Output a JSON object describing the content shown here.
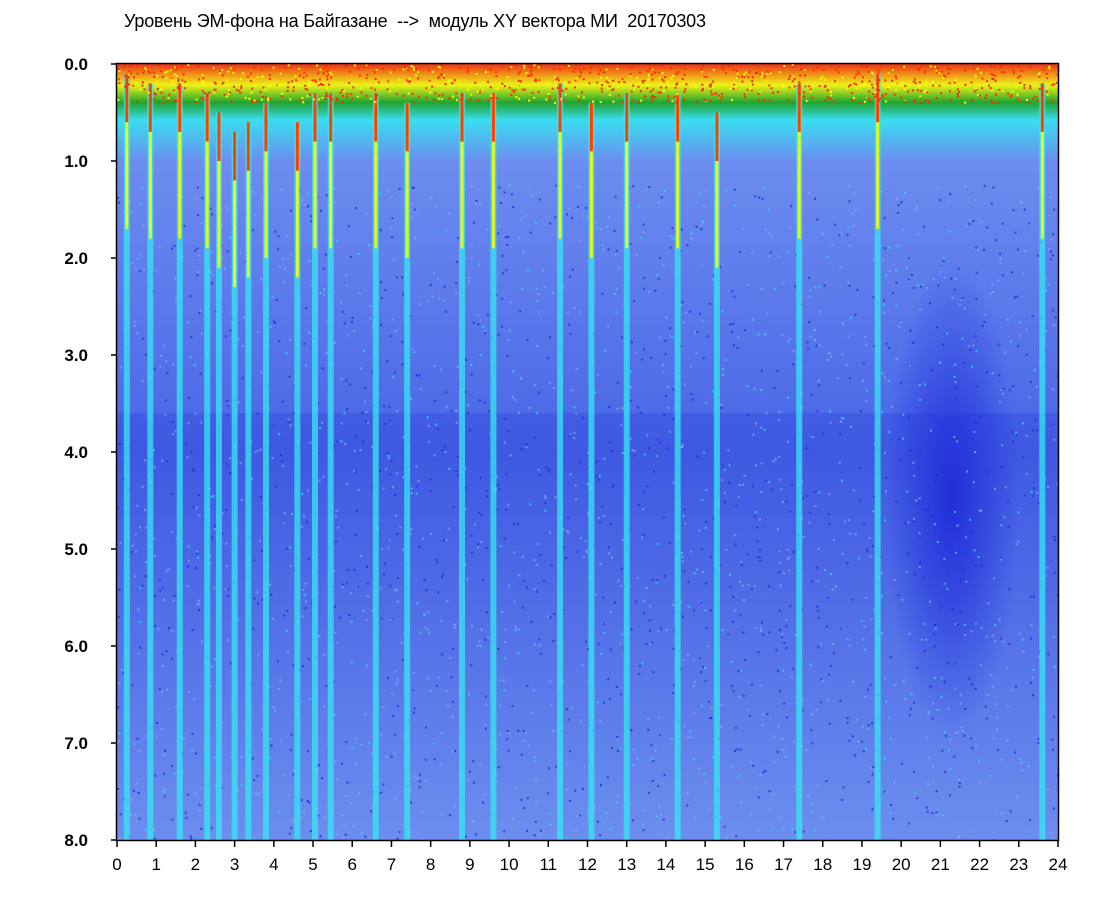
{
  "chart_data": {
    "type": "heatmap",
    "title": "Уровень ЭМ-фона на Байгазане  -->  модуль XY вектора МИ  20170303",
    "xlabel": "",
    "ylabel": "",
    "xlim": [
      0,
      24
    ],
    "ylim": [
      0.0,
      8.0
    ],
    "y_axis_inverted": true,
    "grid": false,
    "x_ticks": [
      "0",
      "1",
      "2",
      "3",
      "4",
      "5",
      "6",
      "7",
      "8",
      "9",
      "10",
      "11",
      "12",
      "13",
      "14",
      "15",
      "16",
      "17",
      "18",
      "19",
      "20",
      "21",
      "22",
      "23",
      "24"
    ],
    "y_ticks": [
      "0.0",
      "1.0",
      "2.0",
      "3.0",
      "4.0",
      "5.0",
      "6.0",
      "7.0",
      "8.0"
    ],
    "color_scale": [
      "#1e2bdc",
      "#6f8ff0",
      "#35e8f0",
      "#1aa81a",
      "#ffff00",
      "#ff2a00"
    ],
    "background_color": "#4a66e6",
    "spikes": [
      {
        "x": 0.25,
        "top": 0.1
      },
      {
        "x": 0.85,
        "top": 0.2
      },
      {
        "x": 1.6,
        "top": 0.2
      },
      {
        "x": 2.3,
        "top": 0.3
      },
      {
        "x": 2.6,
        "top": 0.5
      },
      {
        "x": 3.0,
        "top": 0.7
      },
      {
        "x": 3.35,
        "top": 0.6
      },
      {
        "x": 3.8,
        "top": 0.4
      },
      {
        "x": 4.6,
        "top": 0.6
      },
      {
        "x": 5.05,
        "top": 0.3
      },
      {
        "x": 5.45,
        "top": 0.3
      },
      {
        "x": 6.6,
        "top": 0.3
      },
      {
        "x": 7.4,
        "top": 0.4
      },
      {
        "x": 8.8,
        "top": 0.3
      },
      {
        "x": 9.6,
        "top": 0.3
      },
      {
        "x": 11.3,
        "top": 0.2
      },
      {
        "x": 12.1,
        "top": 0.4
      },
      {
        "x": 13.0,
        "top": 0.3
      },
      {
        "x": 14.3,
        "top": 0.3
      },
      {
        "x": 15.3,
        "top": 0.5
      },
      {
        "x": 17.4,
        "top": 0.2
      },
      {
        "x": 19.4,
        "top": 0.1
      },
      {
        "x": 23.6,
        "top": 0.2
      }
    ]
  }
}
